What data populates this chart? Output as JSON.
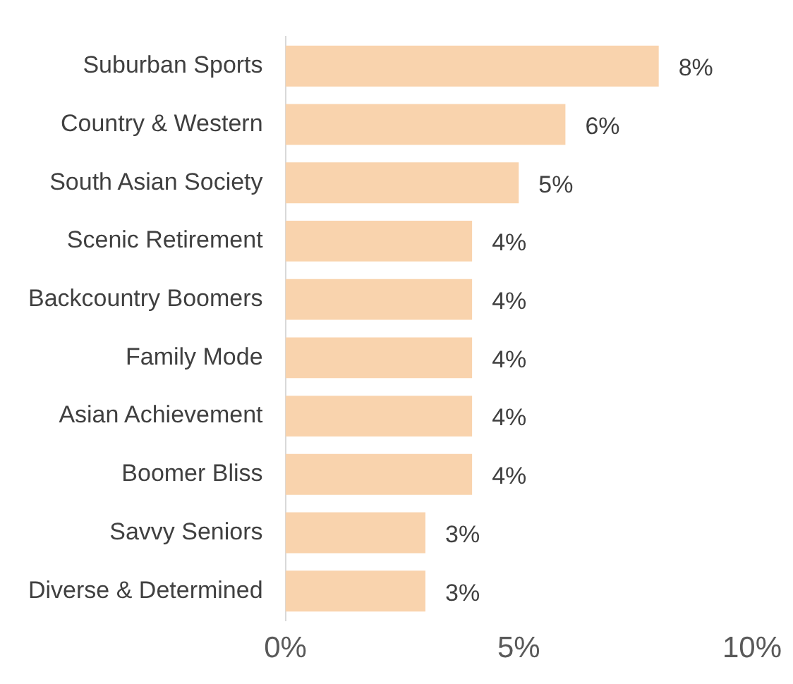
{
  "chart_data": {
    "type": "bar",
    "orientation": "horizontal",
    "categories": [
      "Suburban Sports",
      "Country & Western",
      "South Asian Society",
      "Scenic Retirement",
      "Backcountry Boomers",
      "Family Mode",
      "Asian Achievement",
      "Boomer Bliss",
      "Savvy Seniors",
      "Diverse & Determined"
    ],
    "values": [
      8,
      6,
      5,
      4,
      4,
      4,
      4,
      4,
      3,
      3
    ],
    "value_labels": [
      "8%",
      "6%",
      "5%",
      "4%",
      "4%",
      "4%",
      "4%",
      "4%",
      "3%",
      "3%"
    ],
    "color": "#f9d3ad",
    "xlim": [
      0,
      10
    ],
    "xticks": [
      {
        "value": 0,
        "label": "0%"
      },
      {
        "value": 5,
        "label": "5%"
      },
      {
        "value": 10,
        "label": "10%"
      }
    ],
    "grid": false,
    "legend": false
  }
}
